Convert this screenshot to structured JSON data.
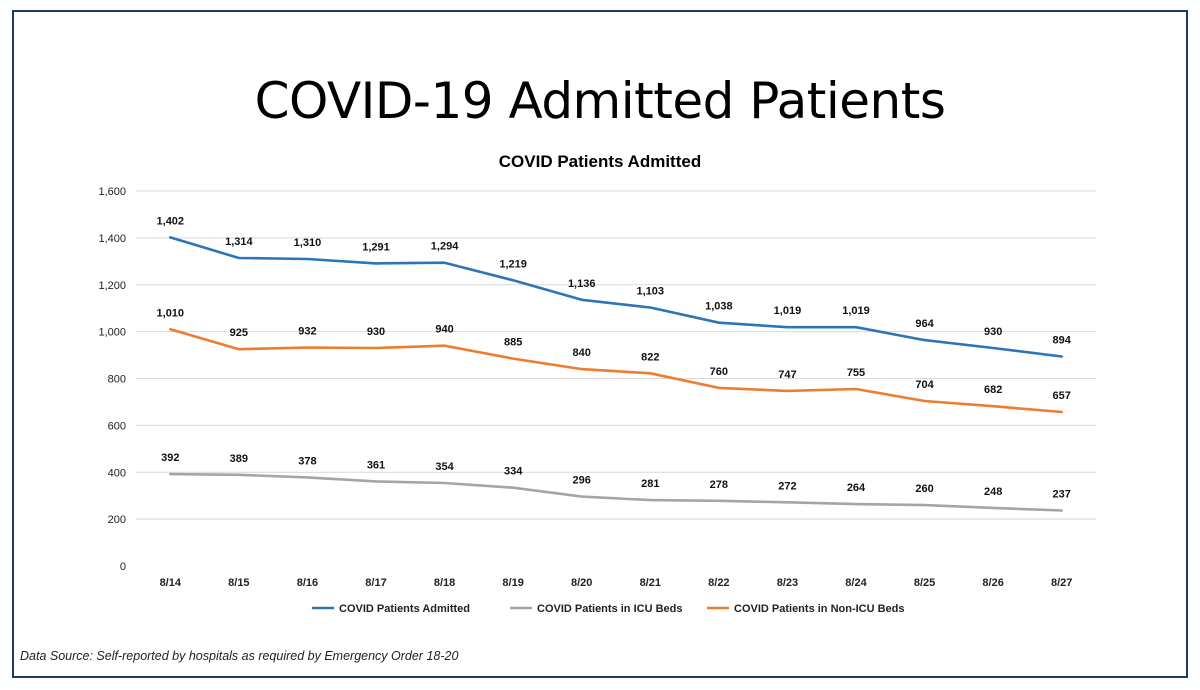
{
  "slide": {
    "title": "COVID-19 Admitted Patients",
    "source": "Data Source: Self-reported by hospitals as required by Emergency Order 18-20"
  },
  "chart_data": {
    "type": "line",
    "title": "COVID Patients Admitted",
    "xlabel": "",
    "ylabel": "",
    "ylim": [
      0,
      1600
    ],
    "yticks": [
      0,
      200,
      400,
      600,
      800,
      1000,
      1200,
      1400,
      1600
    ],
    "ytick_labels": [
      "0",
      "200",
      "400",
      "600",
      "800",
      "1,000",
      "1,200",
      "1,400",
      "1,600"
    ],
    "grid": true,
    "legend_position": "bottom",
    "categories": [
      "8/14",
      "8/15",
      "8/16",
      "8/17",
      "8/18",
      "8/19",
      "8/20",
      "8/21",
      "8/22",
      "8/23",
      "8/24",
      "8/25",
      "8/26",
      "8/27"
    ],
    "series": [
      {
        "name": "COVID Patients Admitted",
        "color": "#2e75b6",
        "values": [
          1402,
          1314,
          1310,
          1291,
          1294,
          1219,
          1136,
          1103,
          1038,
          1019,
          1019,
          964,
          930,
          894
        ],
        "labels": [
          "1,402",
          "1,314",
          "1,310",
          "1,291",
          "1,294",
          "1,219",
          "1,136",
          "1,103",
          "1,038",
          "1,019",
          "1,019",
          "964",
          "930",
          "894"
        ]
      },
      {
        "name": "COVID Patients in ICU Beds",
        "color": "#a5a5a5",
        "values": [
          392,
          389,
          378,
          361,
          354,
          334,
          296,
          281,
          278,
          272,
          264,
          260,
          248,
          237
        ],
        "labels": [
          "392",
          "389",
          "378",
          "361",
          "354",
          "334",
          "296",
          "281",
          "278",
          "272",
          "264",
          "260",
          "248",
          "237"
        ]
      },
      {
        "name": "COVID Patients in Non-ICU Beds",
        "color": "#ed7d31",
        "values": [
          1010,
          925,
          932,
          930,
          940,
          885,
          840,
          822,
          760,
          747,
          755,
          704,
          682,
          657
        ],
        "labels": [
          "1,010",
          "925",
          "932",
          "930",
          "940",
          "885",
          "840",
          "822",
          "760",
          "747",
          "755",
          "704",
          "682",
          "657"
        ]
      }
    ]
  }
}
